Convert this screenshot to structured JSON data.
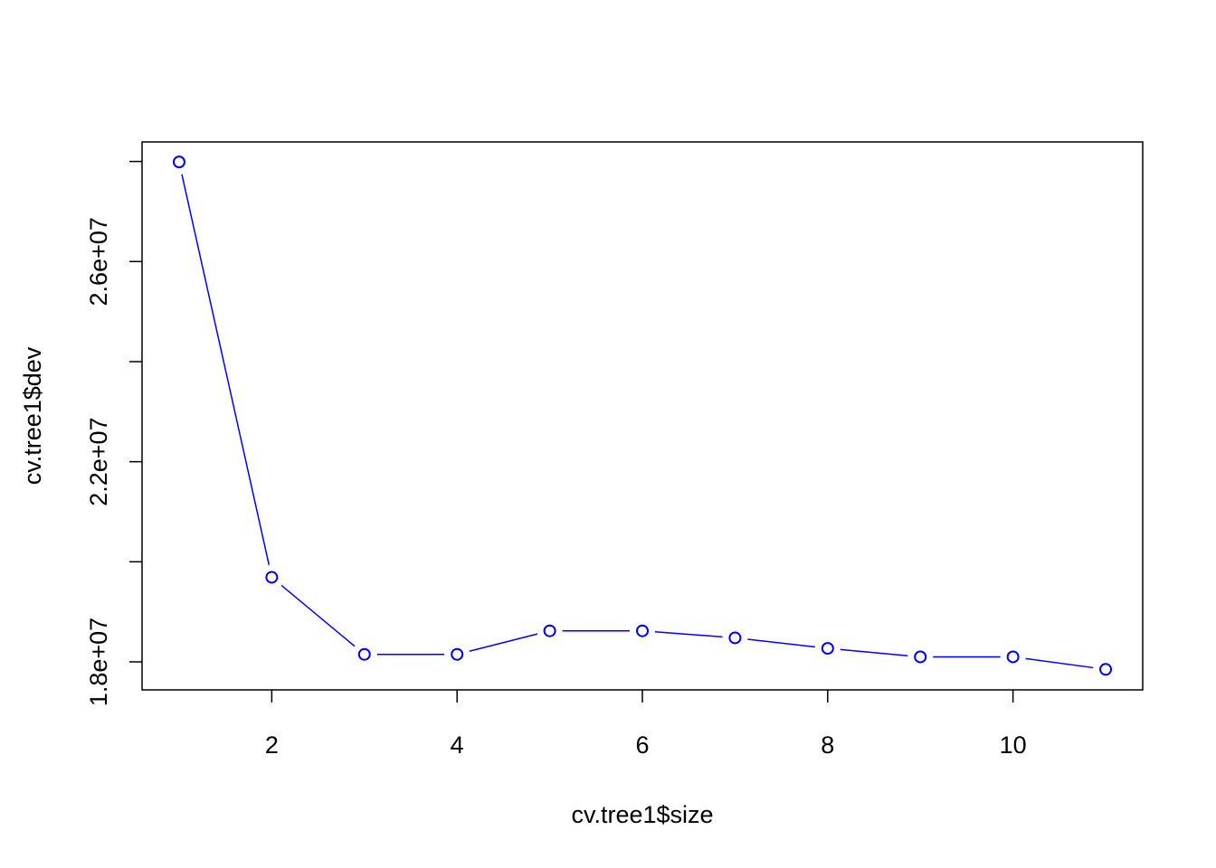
{
  "chart_data": {
    "type": "line",
    "title": "",
    "xlabel": "cv.tree1$size",
    "ylabel": "cv.tree1$dev",
    "x": [
      1,
      2,
      3,
      4,
      5,
      6,
      7,
      8,
      9,
      10,
      11
    ],
    "series": [
      {
        "values": [
          27990000,
          19690000,
          18150000,
          18150000,
          18620000,
          18620000,
          18480000,
          18270000,
          18100000,
          18100000,
          17850000
        ],
        "color": "#0000ff",
        "marker": "open-circle"
      }
    ],
    "xlim": [
      0.6,
      11.4
    ],
    "ylim": [
      17440000,
      28390000
    ],
    "xticks": [
      2,
      4,
      6,
      8,
      10
    ],
    "xtick_labels": [
      "2",
      "4",
      "6",
      "8",
      "10"
    ],
    "yticks": [
      18000000,
      20000000,
      22000000,
      24000000,
      26000000,
      28000000
    ],
    "ytick_labels": [
      "1.8e+07",
      "",
      "2.2e+07",
      "",
      "2.6e+07",
      ""
    ],
    "grid": false,
    "legend": "none"
  }
}
